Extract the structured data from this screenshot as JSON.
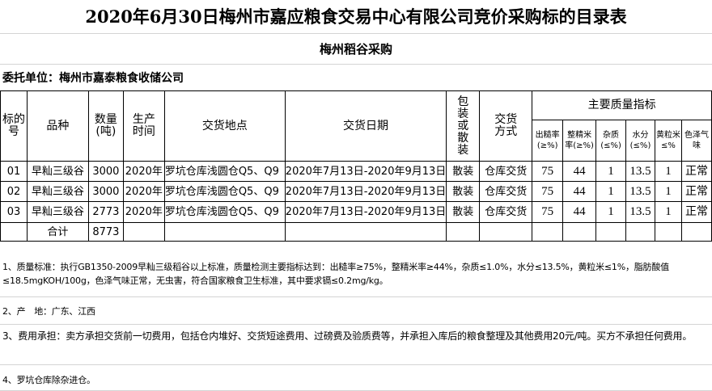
{
  "title": "2020年6月30日梅州市嘉应粮食交易中心有限公司竞价采购标的目录表",
  "subtitle": "梅州稻谷采购",
  "client": "委托单位：梅州市嘉泰粮食收储公司",
  "headers": {
    "lot": "标的号",
    "variety": "品种",
    "qty": "数量(吨)",
    "prod": "生产时间",
    "place": "交货地点",
    "date": "交货日期",
    "pack": "包装或散装",
    "mode": "交货方式",
    "quality": "主要质量指标",
    "q": [
      "出糙率(≥%)",
      "整精米率(≥%)",
      "杂质(≤%)",
      "水分(≤%)",
      "黄粒米≤%",
      "色泽气味"
    ]
  },
  "rows": [
    {
      "lot": "01",
      "variety": "早籼三级谷",
      "qty": "3000",
      "prod": "2020年",
      "place": "罗坑仓库浅圆仓Q5、Q9",
      "date": "2020年7月13日-2020年9月13日",
      "pack": "散装",
      "mode": "仓库交货",
      "q": [
        "75",
        "44",
        "1",
        "13.5",
        "1",
        "正常"
      ]
    },
    {
      "lot": "02",
      "variety": "早籼三级谷",
      "qty": "3000",
      "prod": "2020年",
      "place": "罗坑仓库浅圆仓Q5、Q9",
      "date": "2020年7月13日-2020年9月13日",
      "pack": "散装",
      "mode": "仓库交货",
      "q": [
        "75",
        "44",
        "1",
        "13.5",
        "1",
        "正常"
      ]
    },
    {
      "lot": "03",
      "variety": "早籼三级谷",
      "qty": "2773",
      "prod": "2020年",
      "place": "罗坑仓库浅圆仓Q5、Q9",
      "date": "2020年7月13日-2020年9月13日",
      "pack": "散装",
      "mode": "仓库交货",
      "q": [
        "75",
        "44",
        "1",
        "13.5",
        "1",
        "正常"
      ]
    }
  ],
  "total": {
    "label": "合计",
    "qty": "8773"
  },
  "notes": [
    "1、质量标准：执行GB1350-2009早籼三级稻谷以上标准，质量检测主要指标达到：出糙率≥75%，整精米率≥44%，杂质≤1.0%，水分≤13.5%，黄粒米≤1%，脂肪酸值≤18.5mgKOH/100g，色泽气味正常，无虫害，符合国家粮食卫生标准，其中要求镉≤0.2mg/kg。",
    "2、产　地：广东、江西",
    "3、费用承担：卖方承担交货前一切费用，包括仓内堆好、交货短途费用、过磅费及验质费等，并承担入库后的粮食整理及其他费用20元/吨。买方不承担任何费用。",
    "4、罗坑仓库除杂进仓。"
  ]
}
